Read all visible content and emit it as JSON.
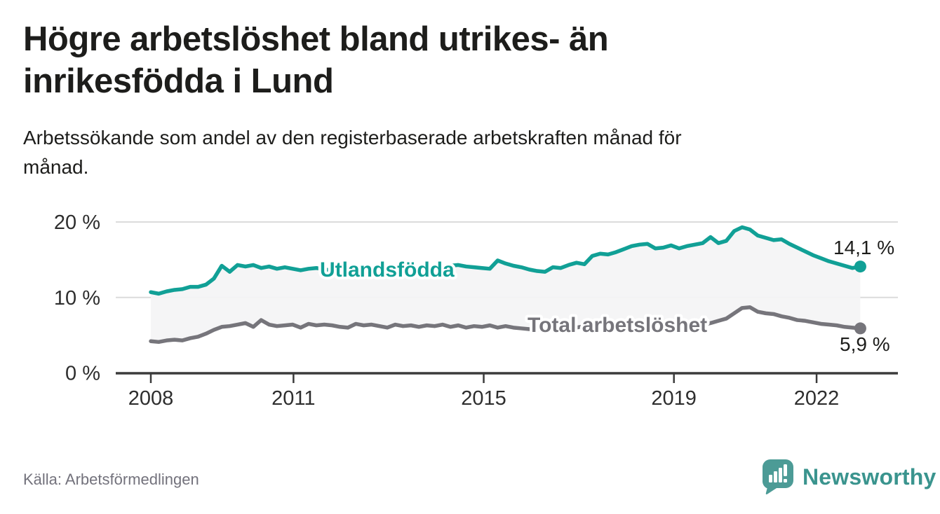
{
  "title": {
    "lines": [
      "Högre arbetslöshet bland utrikes- än",
      "inrikesfödda i Lund"
    ]
  },
  "subtitle": {
    "lines": [
      "Arbetssökande som andel av den registerbaserade arbetskraften månad för",
      "månad."
    ]
  },
  "source": "Källa: Arbetsförmedlingen",
  "logo": {
    "wordmark": "Newsworthy"
  },
  "colors": {
    "accent_teal": "#11a096",
    "line_gray": "#76757b",
    "band_fill": "#f4f4f5",
    "gridline": "#dbdbdb",
    "axis": "#3b3b3b",
    "text_dark": "#1d1d1b",
    "source_gray": "#73727c",
    "logo_teal": "#4c9b96",
    "wordmark_teal": "#3a948e"
  },
  "chart_data": {
    "type": "line",
    "title": "Högre arbetslöshet bland utrikes- än inrikesfödda i Lund",
    "subtitle": "Arbetssökande som andel av den registerbaserade arbetskraften månad för månad.",
    "xlabel": "",
    "ylabel": "",
    "x_start_year": 2008,
    "x_end_year": 2022.92,
    "x_step_months": 2,
    "ylim": [
      0,
      21.5
    ],
    "grid": "horizontal",
    "legend_position": "inline-labels",
    "y_ticks": [
      {
        "value": 0,
        "label": "0 %"
      },
      {
        "value": 10,
        "label": "10 %"
      },
      {
        "value": 20,
        "label": "20 %"
      }
    ],
    "x_ticks": [
      {
        "year": 2008,
        "label": "2008"
      },
      {
        "year": 2011,
        "label": "2011"
      },
      {
        "year": 2015,
        "label": "2015"
      },
      {
        "year": 2019,
        "label": "2019"
      },
      {
        "year": 2022,
        "label": "2022"
      }
    ],
    "band_fill": "#f4f4f5",
    "series": [
      {
        "name": "Utlandsfödda",
        "color": "#11a096",
        "end_value": 14.1,
        "end_label": "14,1 %",
        "values": [
          10.7,
          10.5,
          10.8,
          11.0,
          11.1,
          11.4,
          11.4,
          11.7,
          12.5,
          14.2,
          13.4,
          14.3,
          14.1,
          14.3,
          13.9,
          14.1,
          13.8,
          14.0,
          13.8,
          13.6,
          13.8,
          13.9,
          13.7,
          13.6,
          13.7,
          13.5,
          13.7,
          13.8,
          13.6,
          13.7,
          13.8,
          13.6,
          13.7,
          13.5,
          13.7,
          13.8,
          13.8,
          14.0,
          14.2,
          14.3,
          14.1,
          14.0,
          13.9,
          13.8,
          14.9,
          14.5,
          14.2,
          14.0,
          13.7,
          13.5,
          13.4,
          14.0,
          13.9,
          14.3,
          14.6,
          14.4,
          15.5,
          15.8,
          15.7,
          16.0,
          16.4,
          16.8,
          17.0,
          17.1,
          16.5,
          16.6,
          16.9,
          16.5,
          16.8,
          17.0,
          17.2,
          18.0,
          17.2,
          17.5,
          18.8,
          19.3,
          19.0,
          18.2,
          17.9,
          17.6,
          17.7,
          17.1,
          16.6,
          16.1,
          15.6,
          15.2,
          14.8,
          14.5,
          14.2,
          13.9,
          14.1
        ]
      },
      {
        "name": "Total arbetslöshet",
        "color": "#76757b",
        "end_value": 5.9,
        "end_label": "5,9 %",
        "values": [
          4.2,
          4.1,
          4.3,
          4.4,
          4.3,
          4.6,
          4.8,
          5.2,
          5.7,
          6.1,
          6.2,
          6.4,
          6.6,
          6.1,
          7.0,
          6.4,
          6.2,
          6.3,
          6.4,
          6.0,
          6.5,
          6.3,
          6.4,
          6.3,
          6.1,
          6.0,
          6.5,
          6.3,
          6.4,
          6.2,
          6.0,
          6.4,
          6.2,
          6.3,
          6.1,
          6.3,
          6.2,
          6.4,
          6.1,
          6.3,
          6.0,
          6.2,
          6.1,
          6.3,
          6.0,
          6.2,
          6.0,
          5.9,
          5.8,
          5.7,
          5.9,
          6.1,
          5.9,
          6.1,
          6.0,
          6.2,
          6.1,
          6.3,
          6.4,
          6.2,
          6.1,
          6.0,
          6.1,
          5.9,
          6.0,
          6.1,
          6.2,
          6.1,
          6.2,
          6.3,
          6.4,
          6.6,
          6.9,
          7.2,
          7.9,
          8.6,
          8.7,
          8.1,
          7.9,
          7.8,
          7.5,
          7.3,
          7.0,
          6.9,
          6.7,
          6.5,
          6.4,
          6.3,
          6.1,
          6.0,
          5.9
        ]
      }
    ]
  }
}
